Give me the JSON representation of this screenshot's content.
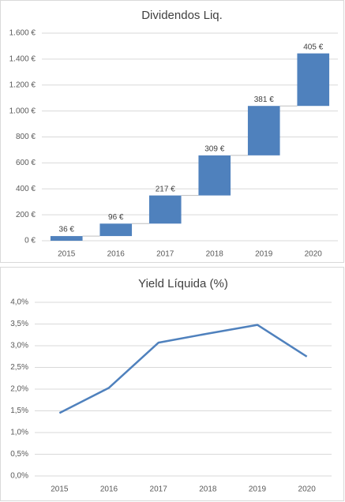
{
  "chart_data": [
    {
      "type": "waterfall",
      "title": "Dividendos Liq.",
      "categories": [
        "2015",
        "2016",
        "2017",
        "2018",
        "2019",
        "2020"
      ],
      "values": [
        36,
        96,
        217,
        309,
        381,
        405
      ],
      "value_labels": [
        "36 €",
        "96 €",
        "217 €",
        "309 €",
        "381 €",
        "405 €"
      ],
      "color": "#4f81bd",
      "ylim": [
        0,
        1600
      ],
      "yticks": [
        {
          "value": 0,
          "label": "0 €"
        },
        {
          "value": 200,
          "label": "200 €"
        },
        {
          "value": 400,
          "label": "400 €"
        },
        {
          "value": 600,
          "label": "600 €"
        },
        {
          "value": 800,
          "label": "800 €"
        },
        {
          "value": 1000,
          "label": "1.000 €"
        },
        {
          "value": 1200,
          "label": "1.200 €"
        },
        {
          "value": 1400,
          "label": "1.400 €"
        },
        {
          "value": 1600,
          "label": "1.600 €"
        }
      ],
      "grid": true
    },
    {
      "type": "line",
      "title": "Yield Líquida (%)",
      "categories": [
        "2015",
        "2016",
        "2017",
        "2018",
        "2019",
        "2020"
      ],
      "values": [
        1.45,
        2.03,
        3.07,
        3.28,
        3.48,
        2.75
      ],
      "color": "#4f81bd",
      "ylim": [
        0,
        4
      ],
      "yticks": [
        {
          "value": 0,
          "label": "0,0%"
        },
        {
          "value": 0.5,
          "label": "0,5%"
        },
        {
          "value": 1,
          "label": "1,0%"
        },
        {
          "value": 1.5,
          "label": "1,5%"
        },
        {
          "value": 2,
          "label": "2,0%"
        },
        {
          "value": 2.5,
          "label": "2,5%"
        },
        {
          "value": 3,
          "label": "3,0%"
        },
        {
          "value": 3.5,
          "label": "3,5%"
        },
        {
          "value": 4,
          "label": "4,0%"
        }
      ],
      "grid": true
    }
  ]
}
